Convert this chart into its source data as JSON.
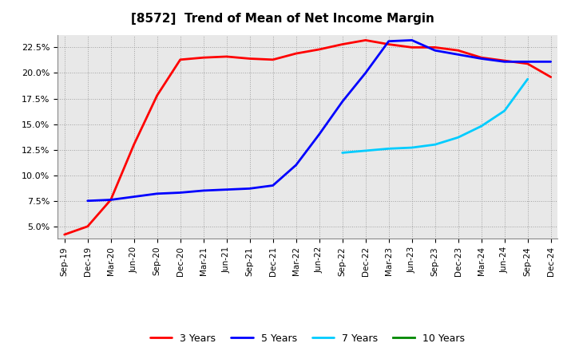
{
  "title": "[8572]  Trend of Mean of Net Income Margin",
  "background_color": "#ffffff",
  "plot_bg_color": "#e8e8e8",
  "legend": [
    "3 Years",
    "5 Years",
    "7 Years",
    "10 Years"
  ],
  "legend_colors": [
    "#ff0000",
    "#0000ff",
    "#00ccff",
    "#008800"
  ],
  "x_labels": [
    "Sep-19",
    "Dec-19",
    "Mar-20",
    "Jun-20",
    "Sep-20",
    "Dec-20",
    "Mar-21",
    "Jun-21",
    "Sep-21",
    "Dec-21",
    "Mar-22",
    "Jun-22",
    "Sep-22",
    "Dec-22",
    "Mar-23",
    "Jun-23",
    "Sep-23",
    "Dec-23",
    "Mar-24",
    "Jun-24",
    "Sep-24",
    "Dec-24"
  ],
  "y_ticks": [
    0.05,
    0.075,
    0.1,
    0.125,
    0.15,
    0.175,
    0.2,
    0.225
  ],
  "ylim": [
    0.038,
    0.237
  ],
  "series_3y": [
    0.042,
    0.05,
    0.076,
    0.13,
    0.178,
    0.213,
    0.215,
    0.216,
    0.214,
    0.213,
    0.219,
    0.223,
    0.228,
    0.232,
    0.228,
    0.225,
    0.225,
    0.222,
    0.215,
    0.212,
    0.209,
    0.196
  ],
  "series_5y": [
    null,
    0.075,
    0.076,
    0.079,
    0.082,
    0.083,
    0.085,
    0.086,
    0.087,
    0.09,
    0.11,
    0.14,
    0.172,
    0.2,
    0.231,
    0.232,
    0.222,
    0.218,
    0.214,
    0.211,
    0.211,
    0.211
  ],
  "series_7y": [
    null,
    null,
    null,
    null,
    null,
    null,
    null,
    null,
    null,
    null,
    null,
    null,
    0.122,
    0.124,
    0.126,
    0.127,
    0.13,
    0.137,
    0.148,
    0.163,
    0.194,
    null
  ],
  "series_10y": [
    null,
    null,
    null,
    null,
    null,
    null,
    null,
    null,
    null,
    null,
    null,
    null,
    null,
    null,
    null,
    null,
    null,
    null,
    null,
    null,
    null,
    null
  ]
}
